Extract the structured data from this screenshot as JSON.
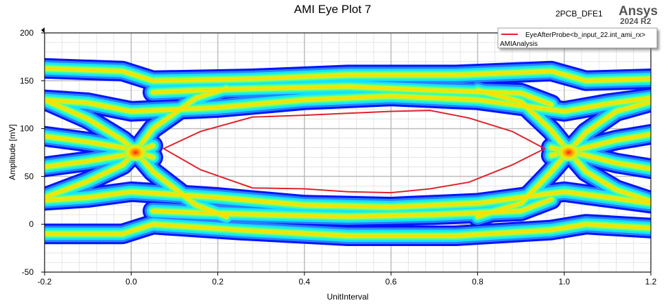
{
  "header": {
    "design_name": "2PCB_DFE1",
    "brand": "Ansys",
    "version": "2024 R2"
  },
  "chart_data": {
    "type": "eye-diagram",
    "title": "AMI Eye Plot 7",
    "xlabel": "UnitInterval",
    "ylabel": "Amplitude [mV]",
    "xlim": [
      -0.2,
      1.2
    ],
    "ylim": [
      -50,
      200
    ],
    "x_ticks": [
      -0.2,
      0.0,
      0.2,
      0.4,
      0.6,
      0.8,
      1.0,
      1.2
    ],
    "y_ticks": [
      -50,
      0,
      50,
      100,
      150,
      200
    ],
    "x_tick_labels": [
      "-0.2",
      "0.0",
      "0.2",
      "0.4",
      "0.6",
      "0.8",
      "1.0",
      "1.2"
    ],
    "y_tick_labels": [
      "-50",
      "0",
      "50",
      "100",
      "150",
      "200"
    ],
    "grid": true,
    "legend": {
      "placement": "top-right",
      "entries": [
        {
          "name": "EyeAfterProbe<b_input_22.int_ami_rx>",
          "color": "#e0202a"
        }
      ],
      "subtitle": "AMIAnalysis"
    },
    "density_colors": [
      "#0014ff",
      "#2a7fff",
      "#14e4ff",
      "#3cffb0",
      "#a8ff3c",
      "#ffe000",
      "#ff2020"
    ],
    "eye_contour": {
      "color": "#e0202a",
      "upper": [
        {
          "x": 0.075,
          "y": 79
        },
        {
          "x": 0.16,
          "y": 97
        },
        {
          "x": 0.28,
          "y": 112
        },
        {
          "x": 0.4,
          "y": 114
        },
        {
          "x": 0.5,
          "y": 116
        },
        {
          "x": 0.6,
          "y": 118
        },
        {
          "x": 0.69,
          "y": 119
        },
        {
          "x": 0.78,
          "y": 111
        },
        {
          "x": 0.88,
          "y": 97
        },
        {
          "x": 0.955,
          "y": 79
        }
      ],
      "lower": [
        {
          "x": 0.955,
          "y": 79
        },
        {
          "x": 0.88,
          "y": 62
        },
        {
          "x": 0.78,
          "y": 44
        },
        {
          "x": 0.69,
          "y": 37
        },
        {
          "x": 0.6,
          "y": 33
        },
        {
          "x": 0.5,
          "y": 34
        },
        {
          "x": 0.4,
          "y": 37
        },
        {
          "x": 0.28,
          "y": 38
        },
        {
          "x": 0.16,
          "y": 57
        },
        {
          "x": 0.075,
          "y": 79
        }
      ]
    },
    "crossings": [
      {
        "x": 0.01,
        "y": 75
      },
      {
        "x": 1.01,
        "y": 75
      }
    ]
  }
}
